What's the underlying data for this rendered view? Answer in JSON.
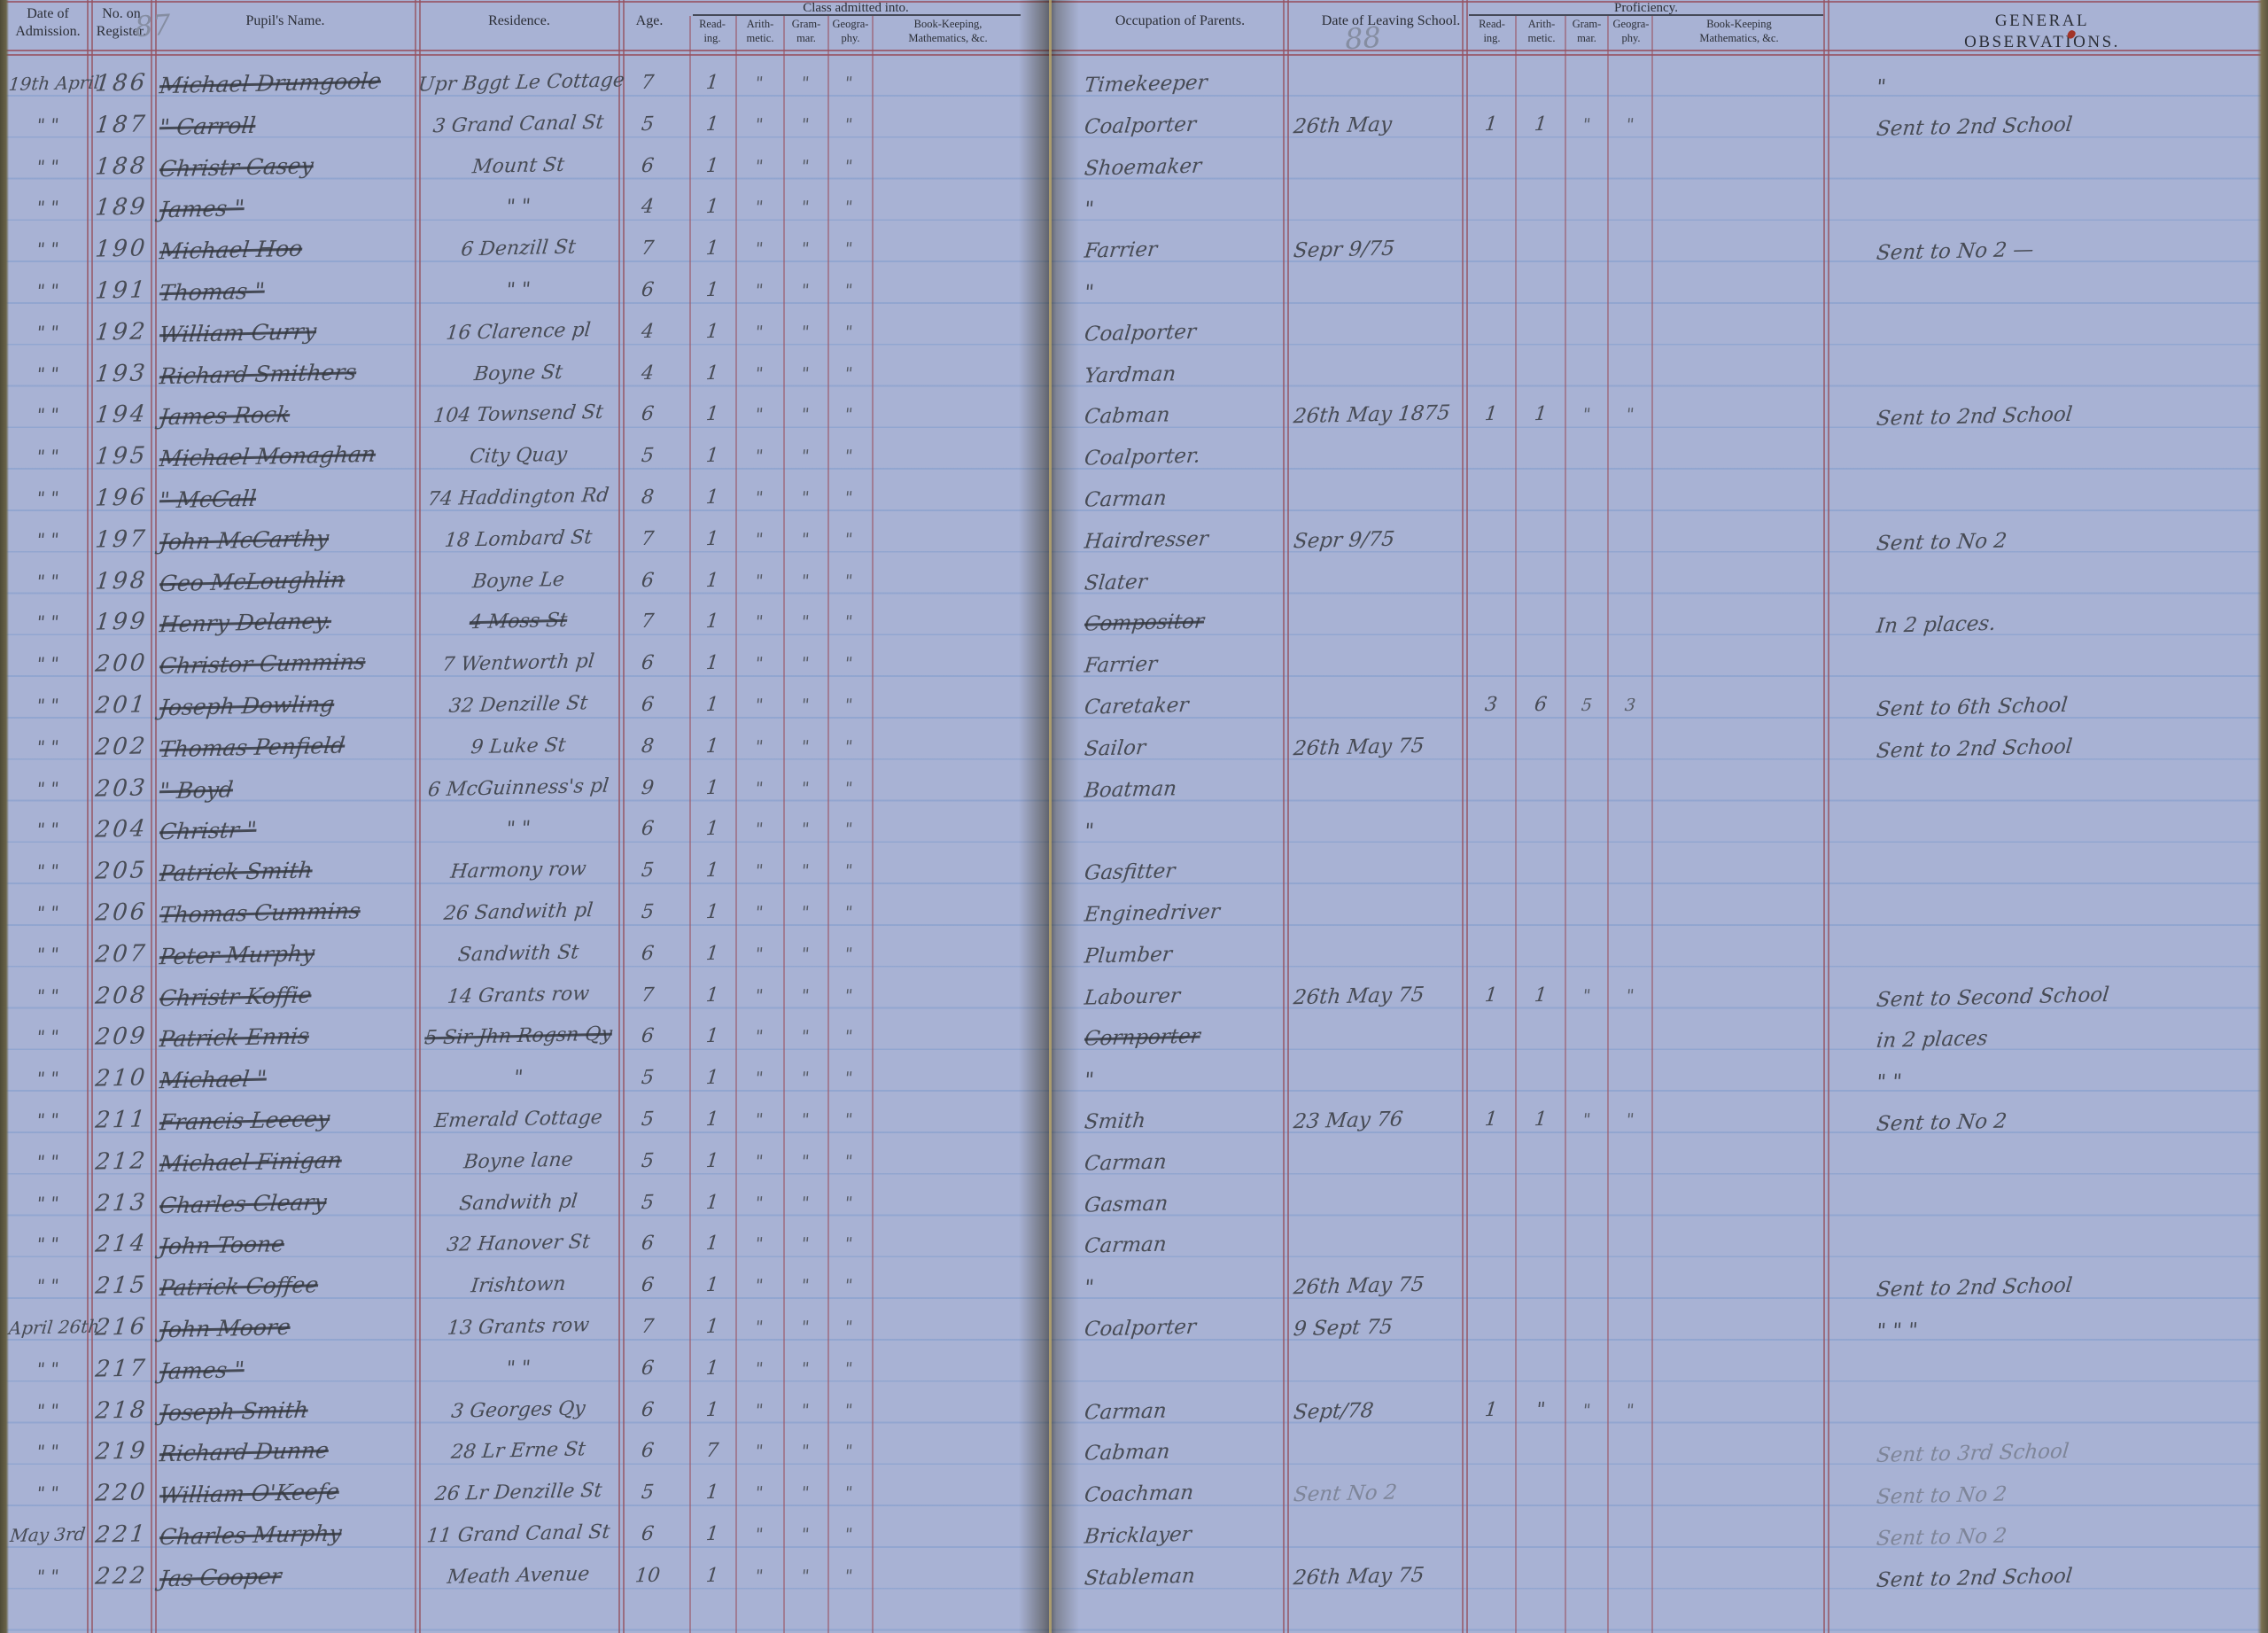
{
  "page": {
    "left_page_number": "87",
    "right_page_number": "88",
    "headers": {
      "date_admission": "Date of\nAdmission.",
      "reg_no": "No. on\nRegister.",
      "pupil_name": "Pupil's Name.",
      "residence": "Residence.",
      "age": "Age.",
      "class_group": "Class admitted into.",
      "sub_reading": "Read-\ning.",
      "sub_arith": "Arith-\nmetic.",
      "sub_grammar": "Gram-\nmar.",
      "sub_geography": "Geogra-\nphy.",
      "sub_bookkeeping_left": "Book-Keeping,\nMathematics, &c.",
      "occupation": "Occupation of Parents.",
      "date_leaving": "Date of Leaving School.",
      "proficiency_group": "Proficiency.",
      "sub_bookkeeping_right": "Book-Keeping\nMathematics, &c.",
      "general_observations": "GENERAL OBSERVATIONS."
    },
    "names_struck": true
  },
  "rows": [
    {
      "adm": "19th April",
      "no": "186",
      "name": "Michael Drumgoole",
      "res": "Upr Bggt Le Cottage",
      "age": "7",
      "cr": "1",
      "ca": "\"",
      "cg": "\"",
      "cgeo": "\"",
      "occ": "Timekeeper",
      "obs": "\""
    },
    {
      "adm": "\" \"",
      "no": "187",
      "name": "\" Carroll",
      "res": "3 Grand Canal St",
      "age": "5",
      "cr": "1",
      "ca": "\"",
      "cg": "\"",
      "cgeo": "\"",
      "occ": "Coalporter",
      "leave": "26th May",
      "pr": "1",
      "pa": "1",
      "pg": "\"",
      "pgeo": "\"",
      "obs": "Sent to 2nd School"
    },
    {
      "adm": "\" \"",
      "no": "188",
      "name": "Christr Casey",
      "res": "Mount St",
      "age": "6",
      "cr": "1",
      "ca": "\"",
      "cg": "\"",
      "cgeo": "\"",
      "occ": "Shoemaker"
    },
    {
      "adm": "\" \"",
      "no": "189",
      "name": "James \"",
      "res": "\" \"",
      "age": "4",
      "cr": "1",
      "ca": "\"",
      "cg": "\"",
      "cgeo": "\"",
      "occ": "\""
    },
    {
      "adm": "\" \"",
      "no": "190",
      "name": "Michael Hoo",
      "res": "6 Denzill St",
      "age": "7",
      "cr": "1",
      "ca": "\"",
      "cg": "\"",
      "cgeo": "\"",
      "occ": "Farrier",
      "leave": "Sepr 9/75",
      "obs": "Sent to No 2 —"
    },
    {
      "adm": "\" \"",
      "no": "191",
      "name": "Thomas \"",
      "res": "\" \"",
      "age": "6",
      "cr": "1",
      "ca": "\"",
      "cg": "\"",
      "cgeo": "\"",
      "occ": "\""
    },
    {
      "adm": "\" \"",
      "no": "192",
      "name": "William Curry",
      "res": "16 Clarence pl",
      "age": "4",
      "cr": "1",
      "ca": "\"",
      "cg": "\"",
      "cgeo": "\"",
      "occ": "Coalporter"
    },
    {
      "adm": "\" \"",
      "no": "193",
      "name": "Richard Smithers",
      "res": "Boyne St",
      "age": "4",
      "cr": "1",
      "ca": "\"",
      "cg": "\"",
      "cgeo": "\"",
      "occ": "Yardman"
    },
    {
      "adm": "\" \"",
      "no": "194",
      "name": "James Rock",
      "res": "104 Townsend St",
      "age": "6",
      "cr": "1",
      "ca": "\"",
      "cg": "\"",
      "cgeo": "\"",
      "occ": "Cabman",
      "leave": "26th May 1875",
      "pr": "1",
      "pa": "1",
      "pg": "\"",
      "pgeo": "\"",
      "obs": "Sent to 2nd School"
    },
    {
      "adm": "\" \"",
      "no": "195",
      "name": "Michael Monaghan",
      "res": "City Quay",
      "age": "5",
      "cr": "1",
      "ca": "\"",
      "cg": "\"",
      "cgeo": "\"",
      "occ": "Coalporter."
    },
    {
      "adm": "\" \"",
      "no": "196",
      "name": "\" McCall",
      "res": "74 Haddington Rd",
      "age": "8",
      "cr": "1",
      "ca": "\"",
      "cg": "\"",
      "cgeo": "\"",
      "occ": "Carman"
    },
    {
      "adm": "\" \"",
      "no": "197",
      "name": "John McCarthy",
      "res": "18 Lombard St",
      "age": "7",
      "cr": "1",
      "ca": "\"",
      "cg": "\"",
      "cgeo": "\"",
      "occ": "Hairdresser",
      "leave": "Sepr 9/75",
      "obs": "Sent to No 2"
    },
    {
      "adm": "\" \"",
      "no": "198",
      "name": "Geo McLoughlin",
      "res": "Boyne Le",
      "age": "6",
      "cr": "1",
      "ca": "\"",
      "cg": "\"",
      "cgeo": "\"",
      "occ": "Slater"
    },
    {
      "adm": "\" \"",
      "no": "199",
      "name": "Henry Delaney.",
      "res": "4 Moss St",
      "res_struck": true,
      "age": "7",
      "cr": "1",
      "ca": "\"",
      "cg": "\"",
      "cgeo": "\"",
      "occ": "Compositor",
      "occ_struck": true,
      "obs": "In 2 places."
    },
    {
      "adm": "\" \"",
      "no": "200",
      "name": "Christor Cummins",
      "res": "7 Wentworth pl",
      "age": "6",
      "cr": "1",
      "ca": "\"",
      "cg": "\"",
      "cgeo": "\"",
      "occ": "Farrier"
    },
    {
      "adm": "\" \"",
      "no": "201",
      "name": "Joseph Dowling",
      "res": "32 Denzille St",
      "age": "6",
      "cr": "1",
      "ca": "\"",
      "cg": "\"",
      "cgeo": "\"",
      "occ": "Caretaker",
      "pr": "3",
      "pa": "6",
      "pg": "5",
      "pgeo": "3",
      "obs": "Sent to 6th School"
    },
    {
      "adm": "\" \"",
      "no": "202",
      "name": "Thomas Penfield",
      "res": "9 Luke St",
      "age": "8",
      "cr": "1",
      "ca": "\"",
      "cg": "\"",
      "cgeo": "\"",
      "occ": "Sailor",
      "leave": "26th May 75",
      "obs": "Sent to 2nd School"
    },
    {
      "adm": "\" \"",
      "no": "203",
      "name": "\" Boyd",
      "res": "6 McGuinness's pl",
      "age": "9",
      "cr": "1",
      "ca": "\"",
      "cg": "\"",
      "cgeo": "\"",
      "occ": "Boatman"
    },
    {
      "adm": "\" \"",
      "no": "204",
      "name": "Christr \"",
      "res": "\" \"",
      "age": "6",
      "cr": "1",
      "ca": "\"",
      "cg": "\"",
      "cgeo": "\"",
      "occ": "\""
    },
    {
      "adm": "\" \"",
      "no": "205",
      "name": "Patrick Smith",
      "res": "Harmony row",
      "age": "5",
      "cr": "1",
      "ca": "\"",
      "cg": "\"",
      "cgeo": "\"",
      "occ": "Gasfitter"
    },
    {
      "adm": "\" \"",
      "no": "206",
      "name": "Thomas Cummins",
      "res": "26 Sandwith pl",
      "age": "5",
      "cr": "1",
      "ca": "\"",
      "cg": "\"",
      "cgeo": "\"",
      "occ": "Enginedriver"
    },
    {
      "adm": "\" \"",
      "no": "207",
      "name": "Peter Murphy",
      "res": "Sandwith St",
      "age": "6",
      "cr": "1",
      "ca": "\"",
      "cg": "\"",
      "cgeo": "\"",
      "occ": "Plumber"
    },
    {
      "adm": "\" \"",
      "no": "208",
      "name": "Christr Koffie",
      "res": "14 Grants row",
      "age": "7",
      "cr": "1",
      "ca": "\"",
      "cg": "\"",
      "cgeo": "\"",
      "occ": "Labourer",
      "leave": "26th May 75",
      "pr": "1",
      "pa": "1",
      "pg": "\"",
      "pgeo": "\"",
      "obs": "Sent to Second School"
    },
    {
      "adm": "\" \"",
      "no": "209",
      "name": "Patrick Ennis",
      "res": "5 Sir Jhn Rogsn Qy",
      "res_struck": true,
      "age": "6",
      "cr": "1",
      "ca": "\"",
      "cg": "\"",
      "cgeo": "\"",
      "occ": "Cornporter",
      "occ_struck": true,
      "obs": "in 2 places"
    },
    {
      "adm": "\" \"",
      "no": "210",
      "name": "Michael \"",
      "res": "\"",
      "age": "5",
      "cr": "1",
      "ca": "\"",
      "cg": "\"",
      "cgeo": "\"",
      "occ": "\"",
      "obs": "\" \""
    },
    {
      "adm": "\" \"",
      "no": "211",
      "name": "Francis Leecey",
      "res": "Emerald Cottage",
      "age": "5",
      "cr": "1",
      "ca": "\"",
      "cg": "\"",
      "cgeo": "\"",
      "occ": "Smith",
      "leave": "23 May 76",
      "pr": "1",
      "pa": "1",
      "pg": "\"",
      "pgeo": "\"",
      "obs": "Sent to No 2"
    },
    {
      "adm": "\" \"",
      "no": "212",
      "name": "Michael Finigan",
      "res": "Boyne lane",
      "age": "5",
      "cr": "1",
      "ca": "\"",
      "cg": "\"",
      "cgeo": "\"",
      "occ": "Carman"
    },
    {
      "adm": "\" \"",
      "no": "213",
      "name": "Charles Cleary",
      "res": "Sandwith pl",
      "age": "5",
      "cr": "1",
      "ca": "\"",
      "cg": "\"",
      "cgeo": "\"",
      "occ": "Gasman"
    },
    {
      "adm": "\" \"",
      "no": "214",
      "name": "John Toone",
      "res": "32 Hanover St",
      "age": "6",
      "cr": "1",
      "ca": "\"",
      "cg": "\"",
      "cgeo": "\"",
      "occ": "Carman"
    },
    {
      "adm": "\" \"",
      "no": "215",
      "name": "Patrick Coffee",
      "res": "Irishtown",
      "age": "6",
      "cr": "1",
      "ca": "\"",
      "cg": "\"",
      "cgeo": "\"",
      "occ": "\"",
      "leave": "26th May 75",
      "obs": "Sent to 2nd School"
    },
    {
      "adm": "April 26th",
      "no": "216",
      "name": "John Moore",
      "res": "13 Grants row",
      "age": "7",
      "cr": "1",
      "ca": "\"",
      "cg": "\"",
      "cgeo": "\"",
      "occ": "Coalporter",
      "leave": "9 Sept 75",
      "obs": "\" \" \""
    },
    {
      "adm": "\" \"",
      "no": "217",
      "name": "James \"",
      "res": "\" \"",
      "age": "6",
      "cr": "1",
      "ca": "\"",
      "cg": "\"",
      "cgeo": "\""
    },
    {
      "adm": "\" \"",
      "no": "218",
      "name": "Joseph Smith",
      "res": "3 Georges Qy",
      "age": "6",
      "cr": "1",
      "ca": "\"",
      "cg": "\"",
      "cgeo": "\"",
      "occ": "Carman",
      "leave": "Sept/78",
      "pr": "1",
      "pa": "\"",
      "pg": "\"",
      "pgeo": "\""
    },
    {
      "adm": "\" \"",
      "no": "219",
      "name": "Richard Dunne",
      "res": "28 Lr Erne St",
      "age": "6",
      "cr": "7",
      "ca": "\"",
      "cg": "\"",
      "cgeo": "\"",
      "occ": "Cabman",
      "obs": "Sent to 3rd School",
      "obs_faint": true
    },
    {
      "adm": "\" \"",
      "no": "220",
      "name": "William O'Keefe",
      "res": "26 Lr Denzille St",
      "age": "5",
      "cr": "1",
      "ca": "\"",
      "cg": "\"",
      "cgeo": "\"",
      "occ": "Coachman",
      "leave": "Sent No 2",
      "leave_faint": true,
      "obs": "Sent to No 2",
      "obs_faint": true
    },
    {
      "adm": "May 3rd",
      "no": "221",
      "name": "Charles Murphy",
      "res": "11 Grand Canal St",
      "age": "6",
      "cr": "1",
      "ca": "\"",
      "cg": "\"",
      "cgeo": "\"",
      "occ": "Bricklayer",
      "obs": "Sent to No 2",
      "obs_faint": true
    },
    {
      "adm": "\" \"",
      "no": "222",
      "name": "Jas Cooper",
      "res": "Meath Avenue",
      "age": "10",
      "cr": "1",
      "ca": "\"",
      "cg": "\"",
      "cgeo": "\"",
      "occ": "Stableman",
      "leave": "26th May 75",
      "obs": "Sent to 2nd School"
    }
  ]
}
